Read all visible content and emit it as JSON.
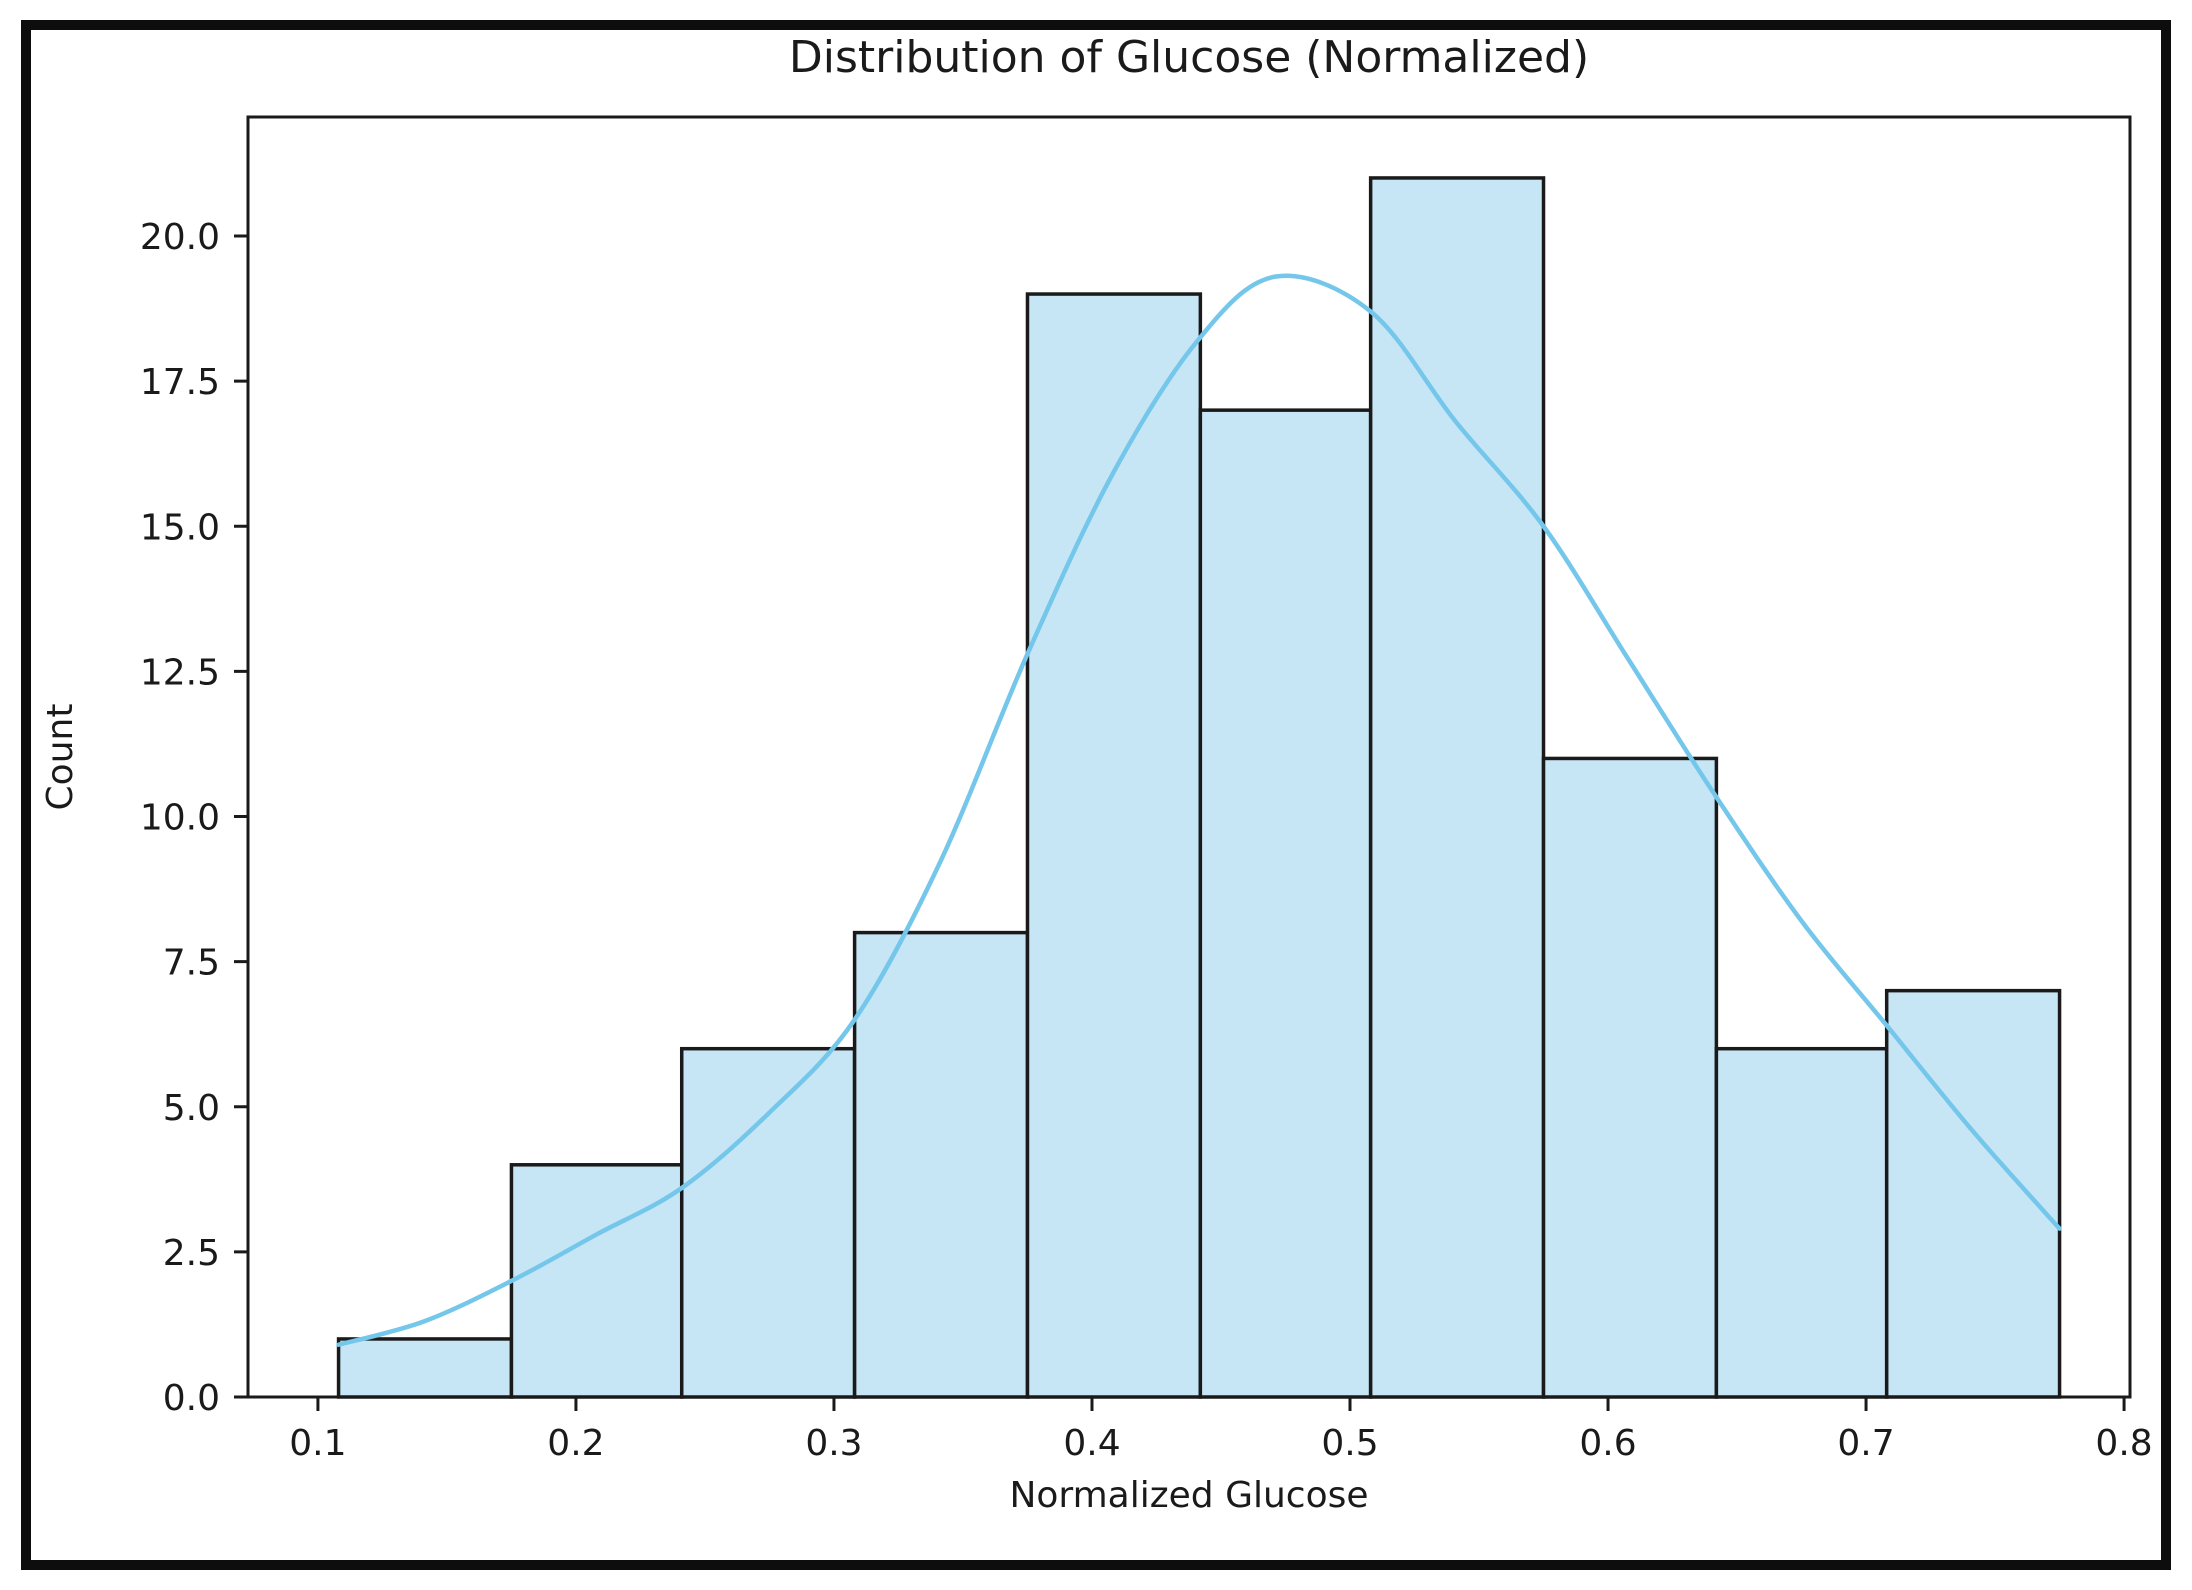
{
  "figure": {
    "border_color": "#0d0d0d",
    "background_color": "#ffffff"
  },
  "chart_data": {
    "type": "bar",
    "subtype": "histogram_with_kde",
    "title": "Distribution of Glucose (Normalized)",
    "xlabel": "Normalized Glucose",
    "ylabel": "Count",
    "grid": false,
    "legend": "none",
    "bin_edges": [
      0.108,
      0.175,
      0.241,
      0.308,
      0.375,
      0.442,
      0.508,
      0.575,
      0.642,
      0.708,
      0.775
    ],
    "counts": [
      1,
      4,
      6,
      8,
      19,
      17,
      21,
      11,
      6,
      7
    ],
    "kde_curve": {
      "x": [
        0.108,
        0.141,
        0.175,
        0.208,
        0.241,
        0.275,
        0.308,
        0.341,
        0.375,
        0.408,
        0.441,
        0.471,
        0.508,
        0.541,
        0.575,
        0.608,
        0.641,
        0.675,
        0.708,
        0.741,
        0.775
      ],
      "y": [
        0.9,
        1.3,
        2.0,
        2.8,
        3.6,
        4.9,
        6.5,
        9.2,
        12.8,
        15.9,
        18.2,
        19.3,
        18.7,
        16.8,
        15.0,
        12.7,
        10.4,
        8.2,
        6.4,
        4.6,
        2.9
      ]
    },
    "xticks": {
      "values": [
        0.1,
        0.2,
        0.3,
        0.4,
        0.5,
        0.6,
        0.7,
        0.8
      ],
      "labels": [
        "0.1",
        "0.2",
        "0.3",
        "0.4",
        "0.5",
        "0.6",
        "0.7",
        "0.8"
      ]
    },
    "yticks": {
      "values": [
        0,
        2.5,
        5,
        7.5,
        10,
        12.5,
        15,
        17.5,
        20
      ],
      "labels": [
        "0.0",
        "2.5",
        "5.0",
        "7.5",
        "10.0",
        "12.5",
        "15.0",
        "17.5",
        "20.0"
      ]
    },
    "xlim": [
      0.0729,
      0.8023
    ],
    "ylim": [
      0,
      22.05
    ],
    "colors": {
      "bar_fill": "#c7e6f5",
      "bar_edge": "#1a1a1a",
      "kde_line": "#74c7ea",
      "spine": "#1a1a1a",
      "tick": "#1a1a1a"
    }
  }
}
